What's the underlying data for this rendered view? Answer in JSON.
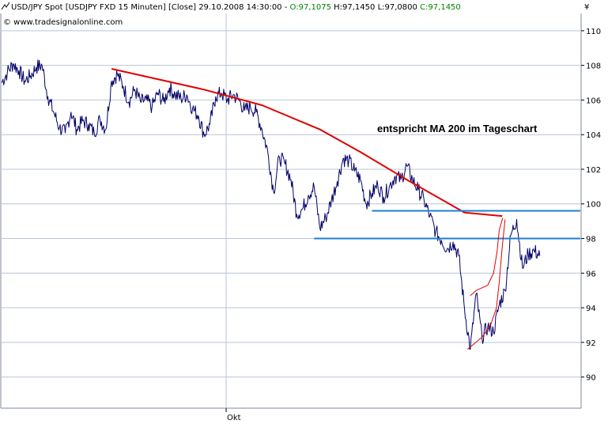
{
  "header": {
    "icon": "line-chart-icon",
    "title": "USD/JPY Spot [USDJPY FXD  15 Minuten] [Close] 29.10.2008 14:30:00 - ",
    "open_label": "O:",
    "open_value": "97,1075",
    "high": "H:97,1450",
    "low": "L:97,0800",
    "close_label": "C:",
    "close_value": "97,1450",
    "watermark": "© www.tradesignalonline.com",
    "currency_symbol": "¥"
  },
  "colors": {
    "price": "#000066",
    "ma_curve": "#e00000",
    "support_lines": "#1e7fd6",
    "open_close_text": "#008000",
    "grid": "#b8c4d4"
  },
  "chart_data": {
    "type": "line",
    "x_axis_label_text": "Okt",
    "yticks": [
      90,
      92,
      94,
      96,
      98,
      100,
      102,
      104,
      106,
      108,
      110
    ],
    "ylim": [
      88.2,
      111
    ],
    "xlim": [
      0,
      100
    ],
    "grid": "horizontal",
    "annotation": "entspricht MA 200 im Tageschart",
    "series": [
      {
        "role": "price",
        "points": [
          [
            0,
            107.0
          ],
          [
            1,
            107.6
          ],
          [
            2,
            108.1
          ],
          [
            3,
            107.7
          ],
          [
            4,
            107.1
          ],
          [
            5,
            107.4
          ],
          [
            6,
            107.9
          ],
          [
            7,
            108.0
          ],
          [
            8,
            106.2
          ],
          [
            9,
            105.3
          ],
          [
            10,
            104.4
          ],
          [
            11,
            104.1
          ],
          [
            12,
            105.3
          ],
          [
            13,
            104.3
          ],
          [
            14,
            104.8
          ],
          [
            15,
            104.6
          ],
          [
            16,
            104.1
          ],
          [
            17,
            104.9
          ],
          [
            18,
            104.3
          ],
          [
            19,
            107.1
          ],
          [
            20,
            107.5
          ],
          [
            21,
            106.8
          ],
          [
            22,
            105.9
          ],
          [
            23,
            106.6
          ],
          [
            24,
            105.9
          ],
          [
            25,
            106.0
          ],
          [
            26,
            105.6
          ],
          [
            27,
            106.4
          ],
          [
            28,
            105.9
          ],
          [
            29,
            106.7
          ],
          [
            30,
            106.3
          ],
          [
            31,
            106.1
          ],
          [
            32,
            106.3
          ],
          [
            33,
            105.5
          ],
          [
            34,
            105.1
          ],
          [
            35,
            104.0
          ],
          [
            36,
            104.6
          ],
          [
            37,
            106.2
          ],
          [
            38,
            106.4
          ],
          [
            39,
            106.0
          ],
          [
            40,
            106.3
          ],
          [
            41,
            106.0
          ],
          [
            42,
            105.4
          ],
          [
            43,
            105.6
          ],
          [
            44,
            105.3
          ],
          [
            45,
            104.3
          ],
          [
            46,
            103.0
          ],
          [
            47,
            100.7
          ],
          [
            48,
            102.7
          ],
          [
            49,
            102.3
          ],
          [
            50,
            101.4
          ],
          [
            51,
            99.4
          ],
          [
            52,
            99.7
          ],
          [
            53,
            100.5
          ],
          [
            54,
            101.0
          ],
          [
            55,
            98.6
          ],
          [
            56,
            99.2
          ],
          [
            57,
            100.2
          ],
          [
            58,
            101.3
          ],
          [
            59,
            102.6
          ],
          [
            60,
            102.5
          ],
          [
            61,
            101.9
          ],
          [
            62,
            101.4
          ],
          [
            63,
            100.0
          ],
          [
            64,
            100.6
          ],
          [
            65,
            101.1
          ],
          [
            66,
            100.4
          ],
          [
            67,
            101.0
          ],
          [
            68,
            101.6
          ],
          [
            69,
            101.4
          ],
          [
            70,
            102.2
          ],
          [
            71,
            101.4
          ],
          [
            72,
            100.8
          ],
          [
            73,
            100.2
          ],
          [
            74,
            99.3
          ],
          [
            75,
            98.4
          ],
          [
            76,
            97.9
          ],
          [
            77,
            97.4
          ],
          [
            78,
            97.8
          ],
          [
            79,
            97.0
          ],
          [
            80,
            93.9
          ],
          [
            81,
            91.6
          ],
          [
            82,
            94.8
          ],
          [
            83,
            92.3
          ],
          [
            84,
            92.9
          ],
          [
            85,
            92.6
          ],
          [
            86,
            94.2
          ],
          [
            87,
            95.0
          ],
          [
            88,
            98.2
          ],
          [
            89,
            99.1
          ],
          [
            90,
            96.3
          ],
          [
            91,
            97.1
          ],
          [
            92,
            97.3
          ],
          [
            93,
            97.0
          ]
        ]
      },
      {
        "role": "ma_curve",
        "points": [
          [
            19,
            107.8
          ],
          [
            35,
            106.6
          ],
          [
            45,
            105.7
          ],
          [
            55,
            104.3
          ],
          [
            62,
            103.0
          ],
          [
            70,
            101.4
          ],
          [
            80,
            99.5
          ],
          [
            86.5,
            99.3
          ]
        ]
      },
      {
        "role": "support_upper",
        "points": [
          [
            64,
            99.6
          ],
          [
            100,
            99.6
          ]
        ]
      },
      {
        "role": "support_lower",
        "points": [
          [
            54,
            98.0
          ],
          [
            100,
            98.0
          ]
        ]
      },
      {
        "role": "lower_curve",
        "points": [
          [
            80.5,
            91.6
          ],
          [
            83,
            92.3
          ],
          [
            84.5,
            93.0
          ],
          [
            85.5,
            94.0
          ],
          [
            86,
            95.5
          ],
          [
            86.5,
            97.5
          ],
          [
            87,
            99.1
          ]
        ]
      },
      {
        "role": "upper_curve",
        "points": [
          [
            81,
            94.7
          ],
          [
            82,
            95.0
          ],
          [
            84,
            95.3
          ],
          [
            85,
            96.0
          ],
          [
            85.6,
            97.2
          ],
          [
            86,
            98.5
          ],
          [
            86.6,
            99.2
          ]
        ]
      }
    ]
  }
}
